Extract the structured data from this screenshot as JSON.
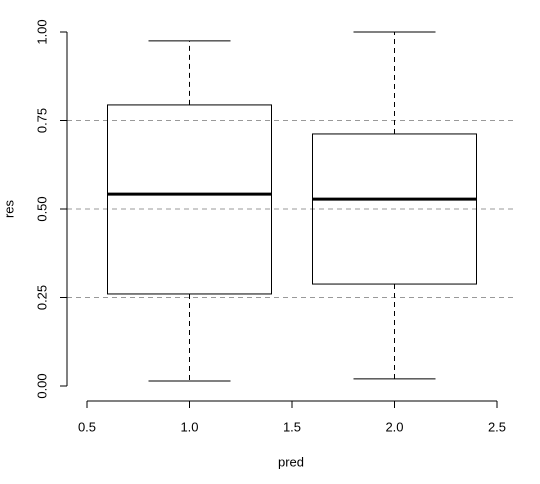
{
  "chart_data": {
    "type": "box",
    "xlabel": "pred",
    "ylabel": "res",
    "x": [
      1,
      2
    ],
    "whisker_low": [
      0.014,
      0.02
    ],
    "q1": [
      0.26,
      0.288
    ],
    "median": [
      0.542,
      0.528
    ],
    "q3": [
      0.794,
      0.712
    ],
    "whisker_high": [
      0.975,
      1.0
    ],
    "xlim": [
      0.5,
      2.5
    ],
    "xticks": [
      0.5,
      {
        "value": 1,
        "label": "1.0"
      },
      1.5,
      {
        "value": 2,
        "label": "2.0"
      },
      2.5
    ],
    "ylim": [
      0,
      1
    ],
    "yticks": [
      {
        "value": 0,
        "label": "0.00"
      },
      {
        "value": 0.25,
        "label": "0.25"
      },
      {
        "value": 0.5,
        "label": "0.50"
      },
      {
        "value": 0.75,
        "label": "0.75"
      },
      {
        "value": 1,
        "label": "1.00"
      }
    ],
    "hlines": [
      0.25,
      0.5,
      0.75
    ],
    "color": "#000000",
    "hline_color": "#999999"
  }
}
